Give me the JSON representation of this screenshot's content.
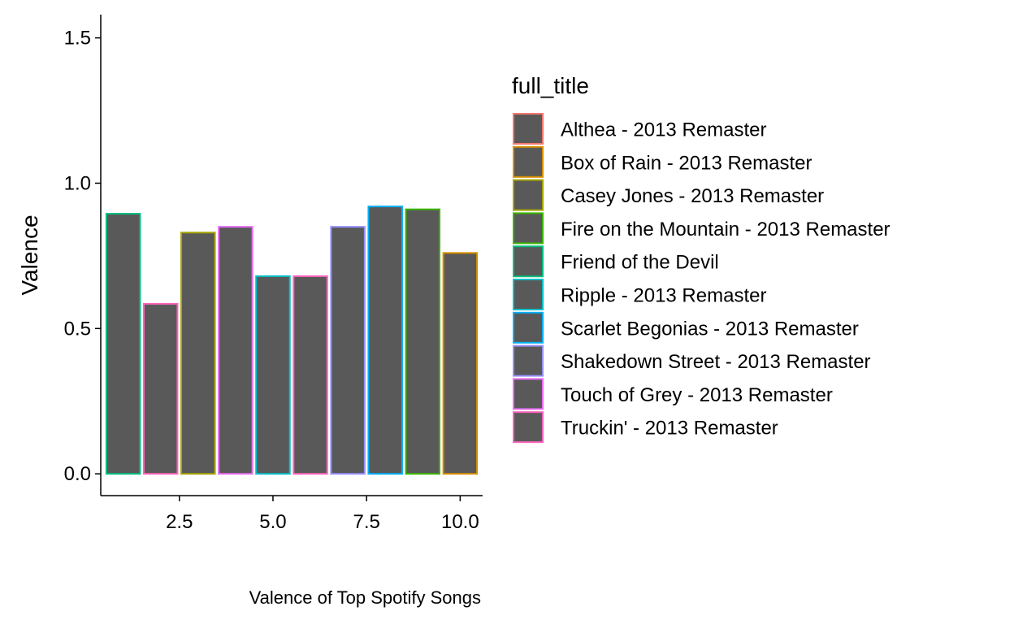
{
  "chart_data": {
    "type": "bar",
    "x": [
      1,
      2,
      3,
      4,
      5,
      6,
      7,
      8,
      9,
      10
    ],
    "values": [
      0.895,
      0.585,
      0.83,
      0.85,
      0.68,
      0.68,
      0.85,
      0.92,
      0.91,
      0.76
    ],
    "bar_groups": [
      "Friend of the Devil",
      "Truckin' - 2013 Remaster",
      "Casey Jones - 2013 Remaster",
      "Touch of Grey - 2013 Remaster",
      "Ripple - 2013 Remaster",
      "Truckin' - 2013 Remaster",
      "Shakedown Street - 2013 Remaster",
      "Scarlet Begonias - 2013 Remaster",
      "Fire on the Mountain - 2013 Remaster",
      "Box of Rain - 2013 Remaster"
    ],
    "bar_fill": "#595959",
    "ylabel": "Valence",
    "xlabel": "",
    "caption": "Valence of Top Spotify Songs",
    "xlim": [
      0.4,
      10.6
    ],
    "ylim": [
      -0.075,
      1.58
    ],
    "xticks": [
      2.5,
      5.0,
      7.5,
      10.0
    ],
    "xtick_labels": [
      "2.5",
      "5.0",
      "7.5",
      "10.0"
    ],
    "yticks": [
      0.0,
      0.5,
      1.0,
      1.5
    ],
    "ytick_labels": [
      "0.0",
      "0.5",
      "1.0",
      "1.5"
    ],
    "grid": false,
    "legend": {
      "title": "full_title",
      "placement": "right",
      "entries": [
        {
          "label": "Althea - 2013 Remaster",
          "color": "#F8766D"
        },
        {
          "label": "Box of Rain - 2013 Remaster",
          "color": "#D89000"
        },
        {
          "label": "Casey Jones - 2013 Remaster",
          "color": "#A3A500"
        },
        {
          "label": "Fire on the Mountain - 2013 Remaster",
          "color": "#39B600"
        },
        {
          "label": "Friend of the Devil",
          "color": "#00BF7D"
        },
        {
          "label": "Ripple - 2013 Remaster",
          "color": "#00BFC4"
        },
        {
          "label": "Scarlet Begonias - 2013 Remaster",
          "color": "#00B0F6"
        },
        {
          "label": "Shakedown Street - 2013 Remaster",
          "color": "#9590FF"
        },
        {
          "label": "Touch of Grey - 2013 Remaster",
          "color": "#E76BF3"
        },
        {
          "label": "Truckin' - 2013 Remaster",
          "color": "#FF62BC"
        }
      ]
    }
  }
}
